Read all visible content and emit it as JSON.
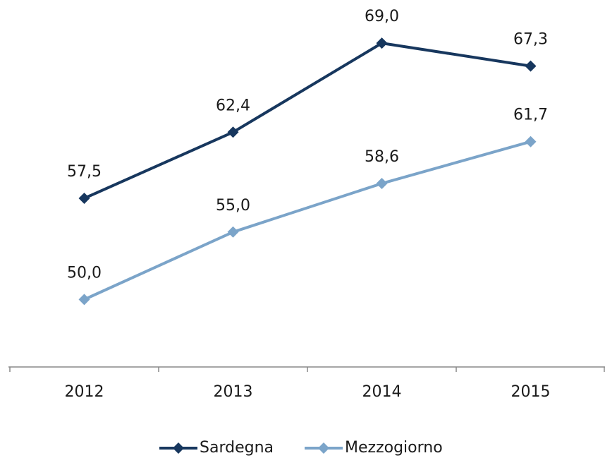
{
  "chart_data": {
    "type": "line",
    "categories": [
      "2012",
      "2013",
      "2014",
      "2015"
    ],
    "series": [
      {
        "name": "Sardegna",
        "color": "#17375e",
        "values": [
          57.5,
          62.4,
          69.0,
          67.3
        ],
        "value_labels": [
          "57,5",
          "62,4",
          "69,0",
          "67,3"
        ]
      },
      {
        "name": "Mezzogiorno",
        "color": "#7ba4c9",
        "values": [
          50.0,
          55.0,
          58.6,
          61.7
        ],
        "value_labels": [
          "50,0",
          "55,0",
          "58,6",
          "61,7"
        ]
      }
    ],
    "ylim": [
      45,
      70
    ],
    "legend": "bottom"
  }
}
